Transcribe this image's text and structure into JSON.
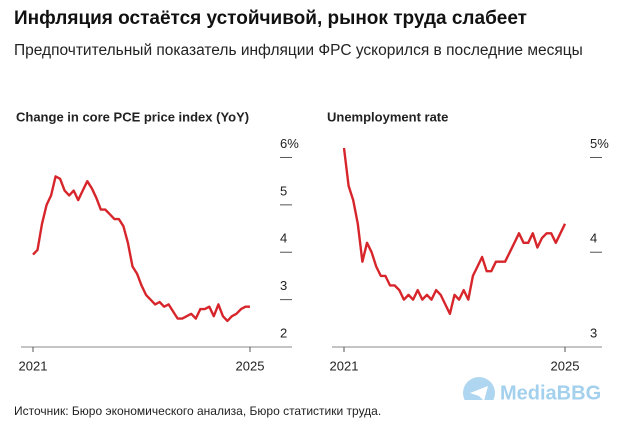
{
  "title": "Инфляция остаётся устойчивой, рынок труда слабеет",
  "subtitle": "Предпочтительный показатель инфляции ФРС ускорился в последние месяцы",
  "source": "Источник: Бюро экономического анализа, Бюро статистики труда.",
  "watermark": "MediaBBG",
  "chart_data": [
    {
      "type": "line",
      "title": "Change in core PCE price index (YoY)",
      "categories": [
        "2021",
        null,
        null,
        null,
        null,
        null,
        null,
        null,
        null,
        null,
        null,
        null,
        null,
        null,
        null,
        null,
        null,
        null,
        null,
        null,
        null,
        null,
        null,
        null,
        null,
        null,
        null,
        null,
        null,
        null,
        null,
        null,
        null,
        null,
        null,
        null,
        null,
        null,
        null,
        null,
        null,
        null,
        null,
        null,
        null,
        null,
        null,
        null,
        "2025"
      ],
      "series": [
        {
          "name": "Core PCE",
          "color": "#d7262b",
          "values": [
            3.95,
            4.05,
            4.6,
            5.0,
            5.2,
            5.6,
            5.55,
            5.3,
            5.2,
            5.3,
            5.1,
            5.3,
            5.5,
            5.35,
            5.15,
            4.9,
            4.9,
            4.8,
            4.7,
            4.7,
            4.55,
            4.2,
            3.7,
            3.55,
            3.3,
            3.1,
            3.0,
            2.9,
            2.95,
            2.85,
            2.9,
            2.75,
            2.6,
            2.6,
            2.65,
            2.7,
            2.6,
            2.8,
            2.8,
            2.85,
            2.65,
            2.9,
            2.65,
            2.55,
            2.65,
            2.7,
            2.8,
            2.85,
            2.85
          ]
        }
      ],
      "ylim": [
        2,
        6.2
      ],
      "yticks": [
        {
          "value": 6,
          "label": "6%"
        },
        5,
        4,
        3,
        2
      ]
    },
    {
      "type": "line",
      "title": "Unemployment rate",
      "categories": [
        "2021",
        null,
        null,
        null,
        null,
        null,
        null,
        null,
        null,
        null,
        null,
        null,
        null,
        null,
        null,
        null,
        null,
        null,
        null,
        null,
        null,
        null,
        null,
        null,
        null,
        null,
        null,
        null,
        null,
        null,
        null,
        null,
        null,
        null,
        null,
        null,
        null,
        null,
        null,
        null,
        null,
        null,
        null,
        null,
        null,
        null,
        null,
        null,
        "2025"
      ],
      "series": [
        {
          "name": "Unemployment",
          "color": "#d7262b",
          "values": [
            5.1,
            4.7,
            4.55,
            4.3,
            3.9,
            4.1,
            4.0,
            3.85,
            3.75,
            3.75,
            3.65,
            3.65,
            3.6,
            3.5,
            3.55,
            3.5,
            3.6,
            3.5,
            3.55,
            3.5,
            3.6,
            3.55,
            3.45,
            3.35,
            3.55,
            3.5,
            3.6,
            3.5,
            3.75,
            3.85,
            3.95,
            3.8,
            3.8,
            3.9,
            3.9,
            3.9,
            4.0,
            4.1,
            4.2,
            4.1,
            4.1,
            4.2,
            4.05,
            4.15,
            4.2,
            4.2,
            4.1,
            4.2,
            4.3
          ]
        }
      ],
      "ylim": [
        3,
        5.1
      ],
      "yticks": [
        {
          "value": 5,
          "label": "5%"
        },
        4,
        3
      ]
    }
  ]
}
